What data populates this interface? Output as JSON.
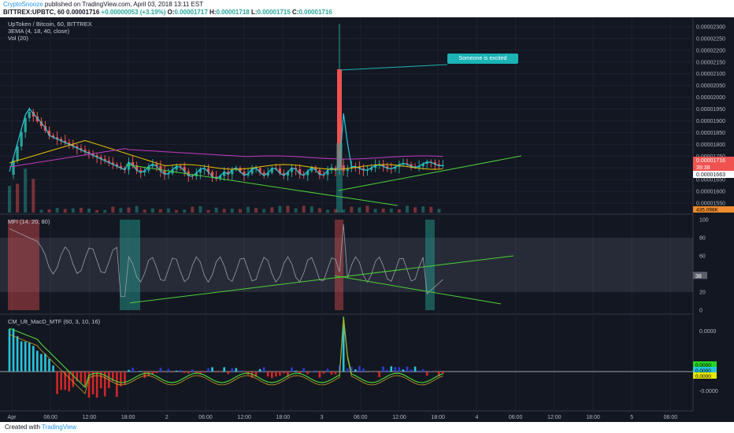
{
  "header": {
    "author": "CryptoSnooze",
    "published": " published on TradingView.com, April 03, 2018 13:11 EST",
    "symbol": "BITTREX:UPBTC, 60",
    "last": "0.00001716",
    "change": "+0.00000053 (+3.19%)",
    "o_label": "O:",
    "o": "0.00001717",
    "h_label": "H:",
    "h": "0.00001718",
    "l_label": "L:",
    "l": "0.00001715",
    "c_label": "C:",
    "c": "0.00001716"
  },
  "chart_title": "UpToken / Bitcoin, 60, BITTREX",
  "indicators": {
    "ema": "3EMA (4, 18, 40, close)",
    "vol": "Vol (20)",
    "mfi": "MFI (14, 20, 80)",
    "macd": "CM_Ult_MacD_MTF (60, 3, 10, 16)"
  },
  "annotation": "Someone is excited",
  "footer": {
    "created": "Created with",
    "brand": "TradingView"
  },
  "colors": {
    "bg": "#131722",
    "up": "#26a69a",
    "down": "#ef5350",
    "ema_fast": "#26c6da",
    "ema_mid": "#e6c200",
    "ema_slow": "#c33cc3",
    "trend": "#4cd137",
    "callout": "#1bb3b6"
  },
  "chart_data": [
    {
      "type": "candlestick",
      "title": "UpToken / Bitcoin, 60, BITTREX",
      "ylim": [
        1.5e-05,
        2.32e-05
      ],
      "y_ticks": [
        "0.00002300",
        "0.00002250",
        "0.00002200",
        "0.00002150",
        "0.00002100",
        "0.00002050",
        "0.00002000",
        "0.00001950",
        "0.00001900",
        "0.00001850",
        "0.00001800",
        "0.00001750",
        "0.00001700",
        "0.00001650",
        "0.00001600",
        "0.00001550"
      ],
      "price_tags": [
        {
          "text": "0.00001716",
          "color": "#ef5350"
        },
        {
          "text": "39:38",
          "color": "#ef5350"
        },
        {
          "text": "0.00001663",
          "color": "#ffffff"
        }
      ],
      "volume_tag": "435.098K",
      "x_ticks": [
        "Apr",
        "06:00",
        "12:00",
        "18:00",
        "2",
        "06:00",
        "12:00",
        "18:00",
        "3",
        "06:00",
        "12:00",
        "18:00",
        "4",
        "06:00",
        "12:00",
        "18:00",
        "5",
        "06:00"
      ],
      "annotation": "Someone is excited"
    },
    {
      "type": "line",
      "title": "MFI (14, 20, 80)",
      "ylim": [
        0,
        100
      ],
      "y_ticks": [
        "100",
        "80",
        "60",
        "40",
        "20",
        "0"
      ],
      "band": [
        20,
        80
      ],
      "last_value": "38"
    },
    {
      "type": "bar",
      "title": "CM_Ult_MacD_MTF (60, 3, 10, 16)",
      "y_ticks": [
        "0.0000",
        "0.0000",
        "-0.0000"
      ],
      "value_tags": [
        {
          "text": "0.0000",
          "color": "#26d426"
        },
        {
          "text": "0.0000",
          "color": "#26c6da"
        },
        {
          "text": "0.0000",
          "color": "#e6e600"
        }
      ]
    }
  ]
}
